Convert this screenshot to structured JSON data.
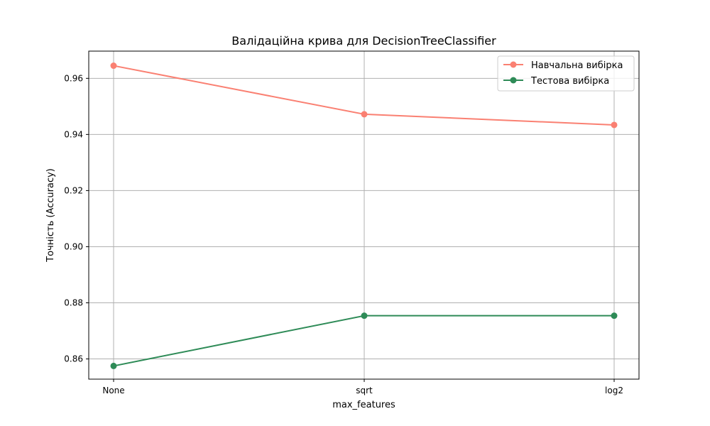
{
  "chart_data": {
    "type": "line",
    "title": "Валідаційна крива для DecisionTreeClassifier",
    "xlabel": "max_features",
    "ylabel": "Точність (Accuracy)",
    "categories": [
      "None",
      "sqrt",
      "log2"
    ],
    "yticks": [
      "0.86",
      "0.88",
      "0.90",
      "0.92",
      "0.94",
      "0.96"
    ],
    "ylim": [
      0.8528,
      0.9697
    ],
    "grid": true,
    "legend_position": "top-right",
    "series": [
      {
        "name": "Навчальна вибірка",
        "color": "#FA8072",
        "marker": "circle",
        "values": [
          0.9645,
          0.9472,
          0.9434
        ]
      },
      {
        "name": "Тестова вибірка",
        "color": "#2E8B57",
        "marker": "circle",
        "values": [
          0.8575,
          0.8754,
          0.8754
        ]
      }
    ]
  }
}
